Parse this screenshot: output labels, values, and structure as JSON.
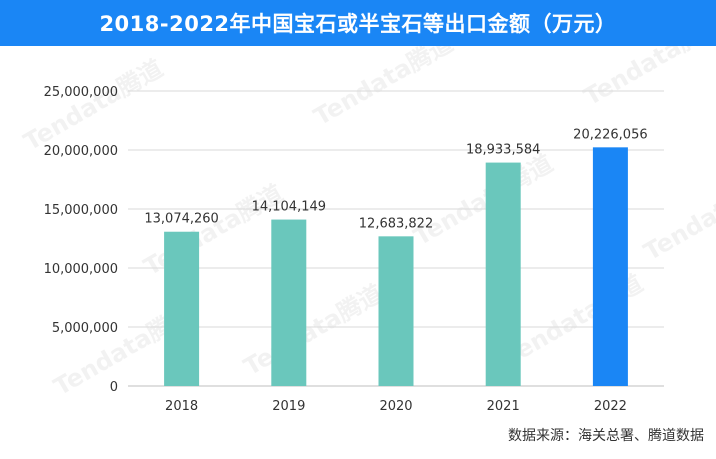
{
  "title": "2018-2022年中国宝石或半宝石等出口金额（万元）",
  "source": "数据来源：海关总署、腾道数据",
  "watermark": "Tendata腾道",
  "colors": {
    "title_bg": "#1a86f5",
    "bar": "#6ac7bc",
    "bar_highlight": "#1a86f5",
    "grid": "#d9d9d9",
    "axis_text": "#333333"
  },
  "chart_data": {
    "type": "bar",
    "categories": [
      "2018",
      "2019",
      "2020",
      "2021",
      "2022"
    ],
    "values": [
      13074260,
      14104149,
      12683822,
      18933584,
      20226056
    ],
    "value_labels": [
      "13,074,260",
      "14,104,149",
      "12,683,822",
      "18,933,584",
      "20,226,056"
    ],
    "y_ticks": [
      0,
      5000000,
      10000000,
      15000000,
      20000000,
      25000000
    ],
    "y_tick_labels": [
      "0",
      "5,000,000",
      "10,000,000",
      "15,000,000",
      "20,000,000",
      "25,000,000"
    ],
    "ylim": [
      0,
      25000000
    ],
    "highlight_index": 4,
    "grid": true
  }
}
